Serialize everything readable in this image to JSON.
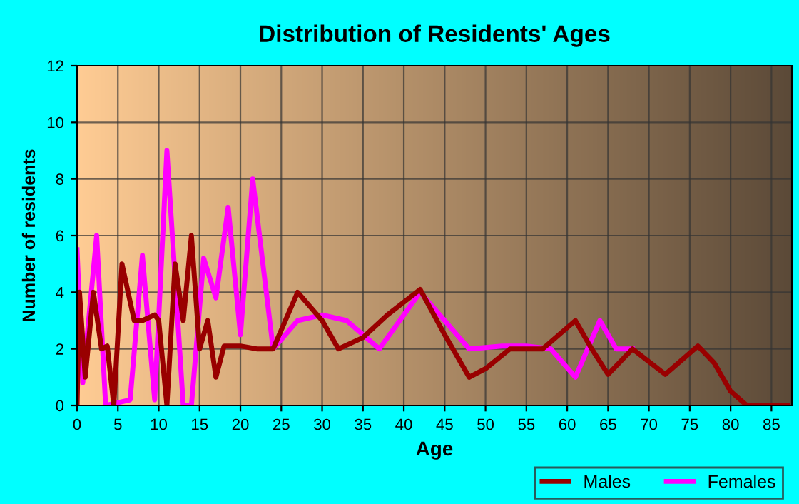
{
  "chart_data": {
    "type": "line",
    "title": "Distribution of Residents' Ages",
    "xlabel": "Age",
    "ylabel": "Number of residents",
    "xlim": [
      0,
      87.5
    ],
    "xticks": [
      0,
      5,
      10,
      15,
      20,
      25,
      30,
      35,
      40,
      45,
      50,
      55,
      60,
      65,
      70,
      75,
      80,
      85
    ],
    "ylim": [
      0,
      12
    ],
    "yticks": [
      0,
      2,
      4,
      6,
      8,
      10,
      12
    ],
    "grid": true,
    "legend": "bottom right",
    "series": [
      {
        "name": "Males",
        "color": "#990000",
        "x": [
          0,
          0.3,
          1,
          2,
          3,
          3.7,
          4.5,
          5.5,
          7,
          8,
          9.5,
          10,
          11,
          12,
          13,
          14,
          15,
          16,
          17,
          18,
          20,
          22,
          24,
          27,
          30,
          32,
          35,
          38,
          42,
          45,
          48,
          50,
          53,
          57,
          61,
          63,
          65,
          68,
          72,
          76,
          78,
          80,
          82,
          85,
          87
        ],
        "values": [
          0,
          4,
          1,
          4,
          2,
          2.1,
          0,
          5,
          3,
          3,
          3.2,
          3,
          0,
          5,
          3,
          6,
          2,
          3,
          1,
          2.1,
          2.1,
          2,
          2,
          4,
          3,
          2,
          2.4,
          3.2,
          4.1,
          2.5,
          1,
          1.3,
          2,
          2,
          3,
          2,
          1.1,
          2,
          1.1,
          2.1,
          1.5,
          0.5,
          0,
          0,
          0
        ]
      },
      {
        "name": "Females",
        "color": "#ff00ff",
        "x": [
          0,
          0.7,
          2.4,
          3.5,
          5,
          6.5,
          8,
          9.5,
          11,
          13,
          14,
          15.5,
          17,
          18.5,
          20,
          21.5,
          24,
          27,
          30,
          33,
          37,
          42,
          48,
          52,
          55,
          58,
          61,
          64,
          66,
          68
        ],
        "values": [
          5.5,
          0.8,
          6,
          0,
          0.1,
          0.2,
          5.3,
          0.2,
          9,
          0,
          0,
          5.2,
          3.8,
          7,
          2.5,
          8,
          2,
          3,
          3.2,
          3,
          2,
          4,
          2,
          2.1,
          2.1,
          2,
          1,
          3,
          2,
          2
        ]
      }
    ]
  }
}
